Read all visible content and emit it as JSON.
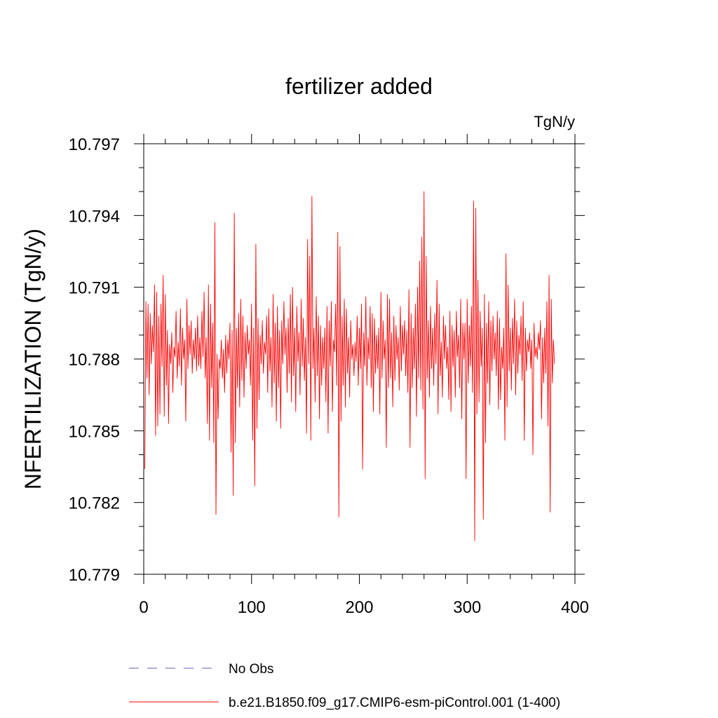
{
  "chart_data": {
    "type": "line",
    "title": "fertilizer added",
    "units_label": "TgN/y",
    "ylabel": "NFERTILIZATION  (TgN/y)",
    "xlabel": "",
    "xlim": [
      0,
      400
    ],
    "ylim": [
      10.779,
      10.797
    ],
    "x_ticks": [
      0,
      100,
      200,
      300,
      400
    ],
    "y_ticks": [
      10.779,
      10.782,
      10.785,
      10.788,
      10.791,
      10.794,
      10.797
    ],
    "x_tick_labels": [
      "0",
      "100",
      "200",
      "300",
      "400"
    ],
    "y_tick_labels": [
      "10.779",
      "10.782",
      "10.785",
      "10.788",
      "10.791",
      "10.794",
      "10.797"
    ],
    "x_minor_step": 20,
    "y_minor_step": 0.001,
    "grid": false,
    "legend_position": "bottom",
    "series": [
      {
        "name": "No Obs",
        "color": "#7f7fbf",
        "dash": "dashed",
        "values": []
      },
      {
        "name": "b.e21.B1850.f09_g17.CMIP6-esm-piControl.001 (1-400)",
        "color": "#ff0000",
        "dash": "solid",
        "x_start": 1,
        "x_step": 1,
        "values": [
          10.7834,
          10.7904,
          10.7872,
          10.7903,
          10.7865,
          10.7899,
          10.7878,
          10.7894,
          10.7883,
          10.7911,
          10.7848,
          10.7908,
          10.7852,
          10.7898,
          10.7857,
          10.7903,
          10.7877,
          10.7915,
          10.7856,
          10.7907,
          10.7869,
          10.7892,
          10.7853,
          10.7886,
          10.7878,
          10.7891,
          10.7866,
          10.7885,
          10.7881,
          10.79,
          10.7872,
          10.7887,
          10.7877,
          10.7901,
          10.7869,
          10.7893,
          10.788,
          10.7888,
          10.7854,
          10.7905,
          10.7876,
          10.7894,
          10.7882,
          10.7896,
          10.7874,
          10.7888,
          10.788,
          10.7893,
          10.7875,
          10.7898,
          10.7877,
          10.7889,
          10.7876,
          10.79,
          10.7881,
          10.7908,
          10.7872,
          10.7889,
          10.7853,
          10.7911,
          10.7846,
          10.7903,
          10.7868,
          10.7895,
          10.7845,
          10.7937,
          10.7815,
          10.7882,
          10.7855,
          10.788,
          10.7876,
          10.7888,
          10.7872,
          10.7884,
          10.7866,
          10.789,
          10.7874,
          10.7888,
          10.788,
          10.7895,
          10.7841,
          10.7892,
          10.7823,
          10.7941,
          10.7845,
          10.7893,
          10.7868,
          10.7899,
          10.786,
          10.7905,
          10.7871,
          10.7898,
          10.7864,
          10.7891,
          10.7876,
          10.7894,
          10.7882,
          10.7888,
          10.7869,
          10.7903,
          10.7846,
          10.7893,
          10.7827,
          10.7928,
          10.7851,
          10.7897,
          10.7863,
          10.789,
          10.7878,
          10.7896,
          10.7874,
          10.7887,
          10.7882,
          10.7898,
          10.7866,
          10.7901,
          10.7875,
          10.7889,
          10.786,
          10.7907,
          10.787,
          10.7895,
          10.7854,
          10.7902,
          10.7868,
          10.7892,
          10.7851,
          10.7896,
          10.7878,
          10.7904,
          10.7882,
          10.7893,
          10.7866,
          10.7897,
          10.7874,
          10.7907,
          10.7862,
          10.791,
          10.7873,
          10.7893,
          10.7858,
          10.7902,
          10.7879,
          10.7891,
          10.7865,
          10.7905,
          10.7877,
          10.7897,
          10.7871,
          10.7889,
          10.7849,
          10.793,
          10.7878,
          10.7923,
          10.7846,
          10.7948,
          10.7876,
          10.7893,
          10.7862,
          10.7906,
          10.7873,
          10.7898,
          10.7855,
          10.7894,
          10.7869,
          10.7889,
          10.7876,
          10.7893,
          10.7862,
          10.7902,
          10.7849,
          10.7896,
          10.7877,
          10.7904,
          10.7858,
          10.7888,
          10.7883,
          10.7903,
          10.7869,
          10.7933,
          10.7814,
          10.7927,
          10.7854,
          10.7898,
          10.7869,
          10.7905,
          10.786,
          10.7901,
          10.7874,
          10.7889,
          10.7864,
          10.7896,
          10.788,
          10.7886,
          10.7873,
          10.7887,
          10.7879,
          10.7898,
          10.7869,
          10.7893,
          10.7876,
          10.7903,
          10.7834,
          10.7891,
          10.7877,
          10.7906,
          10.7869,
          10.7889,
          10.788,
          10.7902,
          10.7868,
          10.7899,
          10.7858,
          10.7897,
          10.7874,
          10.789,
          10.7876,
          10.7893,
          10.7857,
          10.7908,
          10.7872,
          10.7896,
          10.788,
          10.7888,
          10.7843,
          10.7907,
          10.7868,
          10.7905,
          10.7872,
          10.7891,
          10.786,
          10.7898,
          10.7871,
          10.7894,
          10.788,
          10.7889,
          10.7867,
          10.7902,
          10.7875,
          10.7894,
          10.7882,
          10.7896,
          10.7873,
          10.7892,
          10.7866,
          10.7909,
          10.7843,
          10.7899,
          10.7868,
          10.7893,
          10.7876,
          10.7903,
          10.7856,
          10.791,
          10.7872,
          10.7921,
          10.7867,
          10.7931,
          10.7859,
          10.795,
          10.783,
          10.7923,
          10.7872,
          10.7896,
          10.7864,
          10.7902,
          10.7876,
          10.7893,
          10.7869,
          10.7899,
          10.7878,
          10.7913,
          10.7857,
          10.7903,
          10.7873,
          10.7887,
          10.7864,
          10.7898,
          10.788,
          10.7894,
          10.7876,
          10.7885,
          10.7863,
          10.79,
          10.7858,
          10.7894,
          10.7877,
          10.7892,
          10.7864,
          10.79,
          10.7881,
          10.789,
          10.7868,
          10.7905,
          10.7855,
          10.7895,
          10.788,
          10.7895,
          10.783,
          10.7905,
          10.787,
          10.7894,
          10.7877,
          10.7902,
          10.7866,
          10.7946,
          10.7804,
          10.7943,
          10.7857,
          10.7913,
          10.7862,
          10.79,
          10.7877,
          10.7893,
          10.7813,
          10.7907,
          10.7845,
          10.7895,
          10.787,
          10.7904,
          10.7861,
          10.7896,
          10.7875,
          10.7898,
          10.788,
          10.7891,
          10.7873,
          10.79,
          10.7859,
          10.7897,
          10.7863,
          10.7885,
          10.7876,
          10.7893,
          10.7846,
          10.7924,
          10.786,
          10.7911,
          10.7875,
          10.7893,
          10.7867,
          10.7897,
          10.7878,
          10.7905,
          10.7865,
          10.7896,
          10.7874,
          10.789,
          10.7882,
          10.7898,
          10.7871,
          10.7904,
          10.7846,
          10.7893,
          10.7875,
          10.7888,
          10.7883,
          10.7891,
          10.7876,
          10.7888,
          10.784,
          10.7895,
          10.7881,
          10.7885,
          10.788,
          10.7891,
          10.7884,
          10.7896,
          10.7855,
          10.7889,
          10.787,
          10.7893,
          10.7874,
          10.7904,
          10.7852,
          10.7915,
          10.7816,
          10.7905,
          10.787,
          10.7888,
          10.7878
        ]
      }
    ]
  }
}
